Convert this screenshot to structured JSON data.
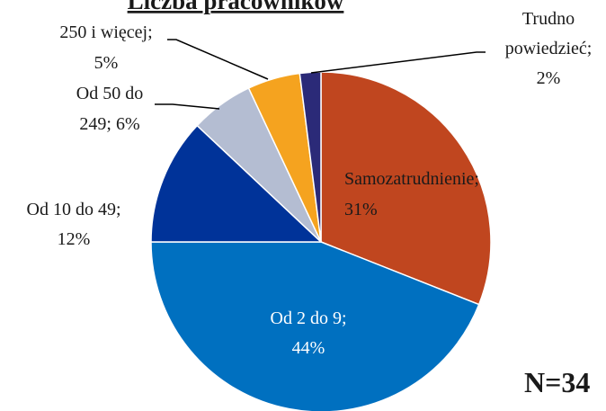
{
  "chart_data": {
    "type": "pie",
    "title": "Liczba pracowników",
    "values": [
      31,
      44,
      12,
      6,
      5,
      2
    ],
    "value_labels": [
      [
        "Samozatrudnienie;",
        "31%"
      ],
      [
        "Od 2 do 9;",
        "44%"
      ],
      [
        "Od 10 do 49;",
        "12%"
      ],
      [
        "Od 50 do",
        "249; 6%"
      ],
      [
        "250 i więcej;",
        "5%"
      ],
      [
        "Trudno",
        "powiedzieć;",
        "2%"
      ]
    ],
    "colors": [
      "#c0461f",
      "#0070c0",
      "#003399",
      "#b4bdd2",
      "#f5a31f",
      "#2b2a78"
    ],
    "annotation": "N=34"
  }
}
